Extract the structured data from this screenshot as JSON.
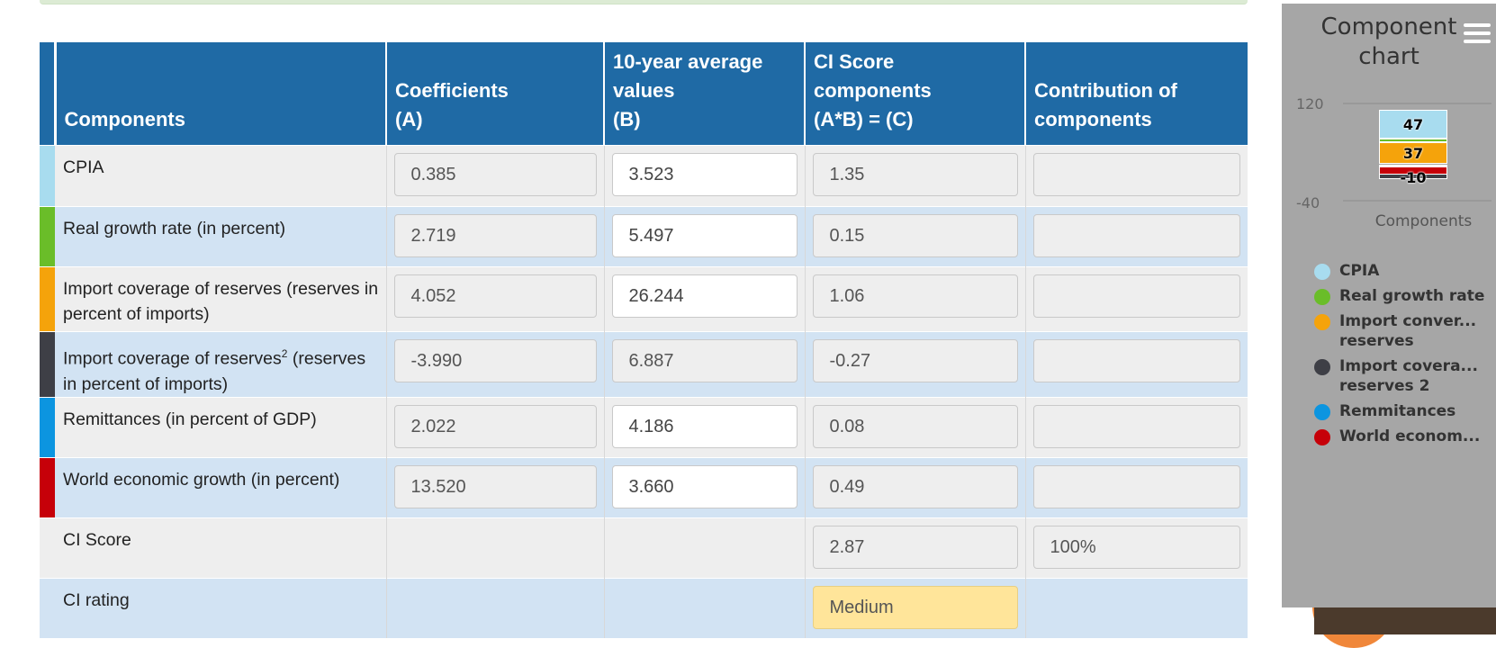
{
  "table": {
    "headers": {
      "components": "Components",
      "coef_1": "Coefficients",
      "coef_2": "(A)",
      "avg_1": "10-year average",
      "avg_2": "values",
      "avg_3": "(B)",
      "ci_1": "CI Score",
      "ci_2": "components",
      "ci_3": "(A*B) = (C)",
      "contrib_1": "Contribution of",
      "contrib_2": "components"
    },
    "rows": [
      {
        "name": "CPIA",
        "color": "#a8dcef",
        "coef": "0.385",
        "avg": "3.523",
        "ci": "1.35",
        "contrib": ""
      },
      {
        "name": "Real growth rate (in percent)",
        "color": "#6abd29",
        "coef": "2.719",
        "avg": "5.497",
        "ci": "0.15",
        "contrib": ""
      },
      {
        "name": "Import coverage of reserves (reserves in percent of imports)",
        "color": "#f5a30b",
        "coef": "4.052",
        "avg": "26.244",
        "ci": "1.06",
        "contrib": ""
      },
      {
        "name_pre": "Import coverage of reserves",
        "name_sup": "2",
        "name_post": " (reserves in percent of imports)",
        "color": "#3e3f46",
        "coef": "-3.990",
        "avg": "6.887",
        "ci": "-0.27",
        "contrib": ""
      },
      {
        "name": "Remittances (in percent of GDP)",
        "color": "#0c95e0",
        "coef": "2.022",
        "avg": "4.186",
        "ci": "0.08",
        "contrib": ""
      },
      {
        "name": "World economic growth (in percent)",
        "color": "#c60009",
        "coef": "13.520",
        "avg": "3.660",
        "ci": "0.49",
        "contrib": ""
      }
    ],
    "score": {
      "label": "CI Score",
      "value": "2.87",
      "contrib": "100%"
    },
    "rating": {
      "label": "CI rating",
      "value": "Medium"
    }
  },
  "chart_panel": {
    "title_1": "Component",
    "title_2": "chart",
    "menu_icon": "hamburger-menu-icon"
  },
  "chart_data": {
    "type": "bar",
    "stacked": true,
    "title": "Component chart",
    "xlabel": "Components",
    "ylim": [
      -40,
      120
    ],
    "y_ticks": [
      "120",
      "-40"
    ],
    "categories": [
      "Components"
    ],
    "series": [
      {
        "name": "CPIA",
        "values": [
          47
        ],
        "label": "47",
        "color": "#a8dcef"
      },
      {
        "name": "Real growth rate",
        "values": [
          5
        ],
        "label": "",
        "color": "#6abd29"
      },
      {
        "name": "Import conver... reserves",
        "values": [
          37
        ],
        "label": "37",
        "color": "#f5a30b"
      },
      {
        "name": "Import covera... reserves 2",
        "values": [
          -10
        ],
        "label": "-10",
        "color": "#3e3f46"
      },
      {
        "name": "Remmitances",
        "values": [
          3
        ],
        "label": "",
        "color": "#0c95e0"
      },
      {
        "name": "World econom...",
        "values": [
          17
        ],
        "label": "",
        "color": "#c60009"
      }
    ],
    "legend": [
      {
        "line1": "CPIA",
        "line2": "",
        "color": "#a8dcef"
      },
      {
        "line1": "Real growth rate",
        "line2": "",
        "color": "#6abd29"
      },
      {
        "line1": "Import conver...",
        "line2": "reserves",
        "color": "#f5a30b"
      },
      {
        "line1": "Import covera...",
        "line2": "reserves 2",
        "color": "#3e3f46"
      },
      {
        "line1": "Remmitances",
        "line2": "",
        "color": "#0c95e0"
      },
      {
        "line1": "World econom...",
        "line2": "",
        "color": "#c60009"
      }
    ]
  }
}
